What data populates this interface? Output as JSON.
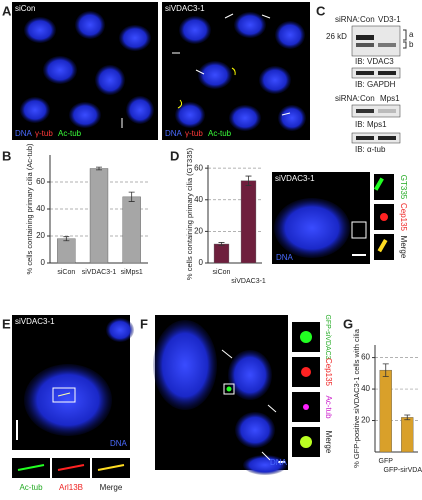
{
  "panels": {
    "A": {
      "letter": "A",
      "left_label": "siCon",
      "right_label": "siVDAC3-1",
      "legend": [
        "DNA",
        "γ-tub",
        "Ac-tub"
      ]
    },
    "C": {
      "letter": "C",
      "blot1": {
        "sirna_label": "siRNA:",
        "lanes": [
          "Con",
          "VD3-1"
        ],
        "marker": "26 kD",
        "bands": [
          "a",
          "b"
        ],
        "ib": [
          "IB: VDAC3",
          "IB: GAPDH"
        ]
      },
      "blot2": {
        "sirna_label": "siRNA:",
        "lanes": [
          "Con",
          "Mps1"
        ],
        "ib": [
          "IB: Mps1",
          "IB: α-tub"
        ]
      }
    },
    "D_image": {
      "label": "siVDAC3-1",
      "channels": [
        "GT335",
        "Cep135",
        "Merge"
      ],
      "dna": "DNA"
    },
    "E": {
      "letter": "E",
      "label": "siVDAC3-1",
      "dna": "DNA",
      "insets": [
        "Ac-tub",
        "Arl13B",
        "Merge"
      ]
    },
    "F": {
      "letter": "F",
      "channels": [
        "GFP-siVDAC3",
        "Cep135",
        "Ac-tub",
        "Merge"
      ],
      "dna": "DNA"
    }
  },
  "chart_data": [
    {
      "type": "bar",
      "letter": "B",
      "y_label": "% cells containing primary cilia (Ac-tub)",
      "categories": [
        "siCon",
        "siVDAC3-1",
        "siMps1"
      ],
      "values": [
        18,
        70,
        49
      ],
      "errors": [
        1.5,
        1,
        3.5
      ],
      "color": "#a6a6a6",
      "ylim": [
        0,
        80
      ],
      "yticks": [
        0,
        20,
        40,
        60
      ],
      "grid": true
    },
    {
      "type": "bar",
      "letter": "D",
      "y_label": "% cells containing primary cilia (GT335)",
      "categories": [
        "siCon",
        "siVDAC3-1"
      ],
      "values": [
        12,
        52
      ],
      "errors": [
        1,
        3
      ],
      "color": "#6e1f3d",
      "ylim": [
        0,
        62
      ],
      "yticks": [
        0,
        20,
        40,
        60
      ],
      "grid": true
    },
    {
      "type": "bar",
      "letter": "G",
      "y_label": "% GFP-positive siVDAC3-1 cells with cilia",
      "categories": [
        "GFP",
        "GFP-sirVDAC3"
      ],
      "values": [
        52,
        22
      ],
      "errors": [
        4,
        1.5
      ],
      "color": "#d9a02a",
      "ylim": [
        0,
        68
      ],
      "yticks": [
        20,
        40,
        60
      ],
      "grid": true
    }
  ]
}
